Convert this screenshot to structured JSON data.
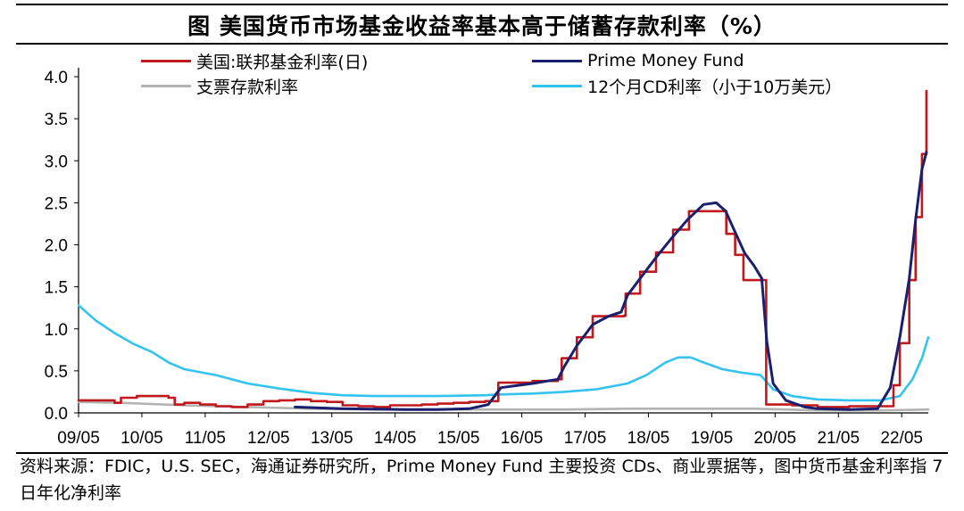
{
  "header": {
    "title": "图  美国货币市场基金收益率基本高于储蓄存款利率（%）"
  },
  "legend": [
    {
      "label": "美国:联邦基金利率(日)",
      "color": "#c0181c"
    },
    {
      "label": "Prime Money Fund",
      "color": "#1a1f6e"
    },
    {
      "label": "支票存款利率",
      "color": "#b3b3b3"
    },
    {
      "label": "12个月CD利率（小于10万美元）",
      "color": "#33c3f0"
    }
  ],
  "footer": {
    "source": "资料来源：FDIC，U.S. SEC，海通证券研究所，Prime Money Fund 主要投资 CDs、商业票据等，图中货币基金利率指 7 日年化净利率"
  },
  "chart_data": {
    "type": "line",
    "title": "美国货币市场基金收益率基本高于储蓄存款利率（%）",
    "xlabel": "",
    "ylabel": "",
    "x_tick_labels": [
      "09/05",
      "10/05",
      "11/05",
      "12/05",
      "13/05",
      "14/05",
      "15/05",
      "16/05",
      "17/05",
      "18/05",
      "19/05",
      "20/05",
      "21/05",
      "22/05"
    ],
    "y_ticks": [
      "0.0",
      "0.5",
      "1.0",
      "1.5",
      "2.0",
      "2.5",
      "3.0",
      "3.5",
      "4.0"
    ],
    "ylim": [
      0,
      4.0
    ],
    "xlim": [
      2009.33,
      2022.75
    ],
    "grid": false,
    "legend_position": "top",
    "series": [
      {
        "name": "美国:联邦基金利率(日)",
        "color": "#c0181c",
        "step": true,
        "points": [
          [
            2009.33,
            0.15
          ],
          [
            2009.9,
            0.12
          ],
          [
            2010.0,
            0.18
          ],
          [
            2010.25,
            0.2
          ],
          [
            2010.6,
            0.2
          ],
          [
            2010.75,
            0.18
          ],
          [
            2010.85,
            0.1
          ],
          [
            2011.0,
            0.12
          ],
          [
            2011.25,
            0.1
          ],
          [
            2011.5,
            0.08
          ],
          [
            2011.75,
            0.07
          ],
          [
            2012.0,
            0.1
          ],
          [
            2012.25,
            0.14
          ],
          [
            2012.5,
            0.15
          ],
          [
            2012.75,
            0.16
          ],
          [
            2013.0,
            0.14
          ],
          [
            2013.25,
            0.13
          ],
          [
            2013.5,
            0.09
          ],
          [
            2013.75,
            0.08
          ],
          [
            2014.0,
            0.07
          ],
          [
            2014.25,
            0.09
          ],
          [
            2014.5,
            0.09
          ],
          [
            2014.75,
            0.1
          ],
          [
            2015.0,
            0.11
          ],
          [
            2015.25,
            0.12
          ],
          [
            2015.5,
            0.13
          ],
          [
            2015.75,
            0.14
          ],
          [
            2015.96,
            0.36
          ],
          [
            2016.5,
            0.38
          ],
          [
            2016.9,
            0.4
          ],
          [
            2016.96,
            0.65
          ],
          [
            2017.2,
            0.9
          ],
          [
            2017.45,
            1.15
          ],
          [
            2017.95,
            1.16
          ],
          [
            2017.97,
            1.42
          ],
          [
            2018.2,
            1.68
          ],
          [
            2018.45,
            1.91
          ],
          [
            2018.72,
            2.18
          ],
          [
            2018.97,
            2.4
          ],
          [
            2019.5,
            2.4
          ],
          [
            2019.56,
            2.13
          ],
          [
            2019.7,
            1.88
          ],
          [
            2019.83,
            1.58
          ],
          [
            2020.17,
            1.58
          ],
          [
            2020.19,
            0.1
          ],
          [
            2020.6,
            0.09
          ],
          [
            2021.0,
            0.07
          ],
          [
            2021.5,
            0.08
          ],
          [
            2021.95,
            0.08
          ],
          [
            2022.2,
            0.33
          ],
          [
            2022.3,
            0.83
          ],
          [
            2022.45,
            1.58
          ],
          [
            2022.55,
            2.33
          ],
          [
            2022.65,
            3.08
          ],
          [
            2022.72,
            3.83
          ]
        ]
      },
      {
        "name": "Prime Money Fund",
        "color": "#1a1f6e",
        "step": false,
        "points": [
          [
            2012.75,
            0.07
          ],
          [
            2013.5,
            0.05
          ],
          [
            2014.5,
            0.04
          ],
          [
            2015.0,
            0.04
          ],
          [
            2015.5,
            0.05
          ],
          [
            2015.8,
            0.1
          ],
          [
            2016.0,
            0.3
          ],
          [
            2016.5,
            0.35
          ],
          [
            2016.9,
            0.4
          ],
          [
            2017.0,
            0.55
          ],
          [
            2017.2,
            0.8
          ],
          [
            2017.45,
            1.05
          ],
          [
            2017.7,
            1.15
          ],
          [
            2017.9,
            1.2
          ],
          [
            2018.0,
            1.4
          ],
          [
            2018.2,
            1.6
          ],
          [
            2018.45,
            1.85
          ],
          [
            2018.72,
            2.1
          ],
          [
            2018.95,
            2.3
          ],
          [
            2019.2,
            2.48
          ],
          [
            2019.4,
            2.5
          ],
          [
            2019.55,
            2.4
          ],
          [
            2019.7,
            2.15
          ],
          [
            2019.85,
            1.9
          ],
          [
            2020.0,
            1.75
          ],
          [
            2020.12,
            1.6
          ],
          [
            2020.2,
            0.85
          ],
          [
            2020.3,
            0.35
          ],
          [
            2020.5,
            0.15
          ],
          [
            2020.8,
            0.07
          ],
          [
            2021.0,
            0.05
          ],
          [
            2021.5,
            0.04
          ],
          [
            2021.95,
            0.05
          ],
          [
            2022.15,
            0.3
          ],
          [
            2022.3,
            0.9
          ],
          [
            2022.45,
            1.6
          ],
          [
            2022.55,
            2.3
          ],
          [
            2022.65,
            2.9
          ],
          [
            2022.72,
            3.1
          ]
        ]
      },
      {
        "name": "支票存款利率",
        "color": "#b3b3b3",
        "step": false,
        "points": [
          [
            2009.33,
            0.13
          ],
          [
            2010.0,
            0.12
          ],
          [
            2011.0,
            0.09
          ],
          [
            2012.0,
            0.07
          ],
          [
            2013.0,
            0.05
          ],
          [
            2014.0,
            0.04
          ],
          [
            2015.0,
            0.04
          ],
          [
            2016.0,
            0.04
          ],
          [
            2017.0,
            0.04
          ],
          [
            2018.0,
            0.05
          ],
          [
            2019.0,
            0.05
          ],
          [
            2020.0,
            0.05
          ],
          [
            2020.5,
            0.04
          ],
          [
            2021.0,
            0.03
          ],
          [
            2022.0,
            0.03
          ],
          [
            2022.75,
            0.04
          ]
        ]
      },
      {
        "name": "12个月CD利率（小于10万美元）",
        "color": "#33c3f0",
        "step": false,
        "points": [
          [
            2009.33,
            1.28
          ],
          [
            2009.6,
            1.1
          ],
          [
            2009.9,
            0.95
          ],
          [
            2010.2,
            0.82
          ],
          [
            2010.5,
            0.72
          ],
          [
            2010.75,
            0.6
          ],
          [
            2011.0,
            0.52
          ],
          [
            2011.5,
            0.45
          ],
          [
            2012.0,
            0.35
          ],
          [
            2012.5,
            0.29
          ],
          [
            2013.0,
            0.24
          ],
          [
            2013.5,
            0.21
          ],
          [
            2014.0,
            0.2
          ],
          [
            2015.0,
            0.2
          ],
          [
            2015.75,
            0.21
          ],
          [
            2016.0,
            0.22
          ],
          [
            2016.5,
            0.23
          ],
          [
            2017.0,
            0.25
          ],
          [
            2017.5,
            0.28
          ],
          [
            2018.0,
            0.35
          ],
          [
            2018.3,
            0.45
          ],
          [
            2018.6,
            0.6
          ],
          [
            2018.8,
            0.66
          ],
          [
            2019.0,
            0.66
          ],
          [
            2019.2,
            0.6
          ],
          [
            2019.5,
            0.52
          ],
          [
            2019.8,
            0.48
          ],
          [
            2020.1,
            0.45
          ],
          [
            2020.3,
            0.28
          ],
          [
            2020.6,
            0.2
          ],
          [
            2021.0,
            0.16
          ],
          [
            2021.5,
            0.15
          ],
          [
            2022.0,
            0.15
          ],
          [
            2022.3,
            0.2
          ],
          [
            2022.5,
            0.4
          ],
          [
            2022.65,
            0.65
          ],
          [
            2022.75,
            0.9
          ]
        ]
      }
    ]
  }
}
